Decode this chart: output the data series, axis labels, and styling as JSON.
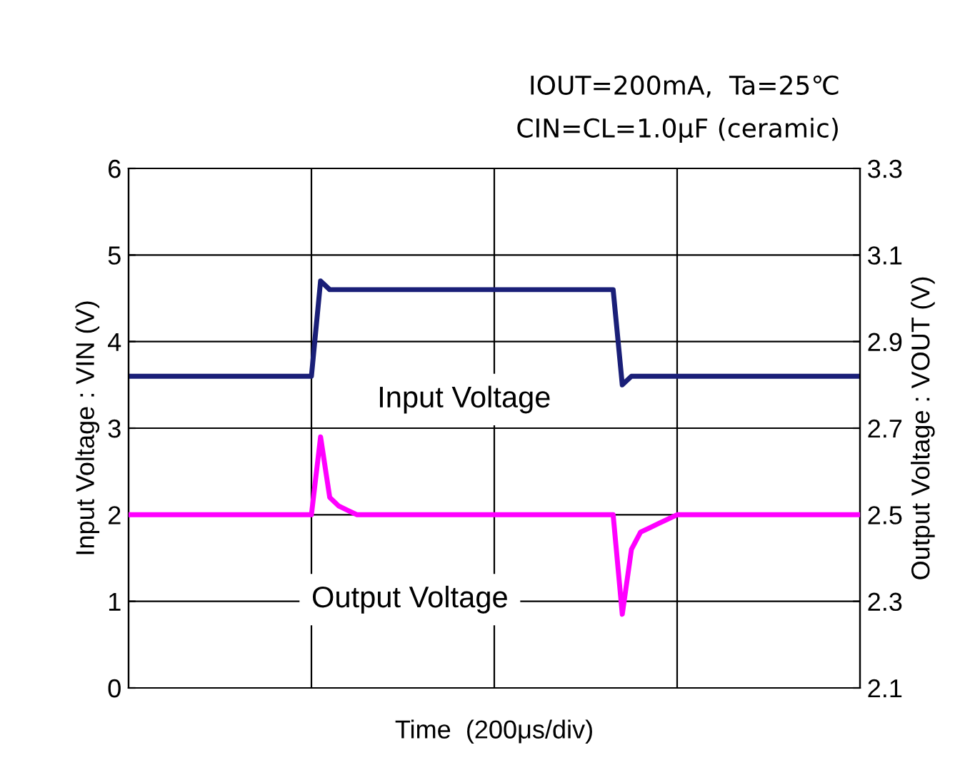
{
  "chart_data": {
    "type": "line",
    "annotations": [
      "IOUT=200mA,  Ta=25℃",
      "CIN=CL=1.0μF (ceramic)"
    ],
    "xlabel": "Time  (200μs/div)",
    "ylabel": "Input Voltage : VIN (V)",
    "y2label": "Output Voltage : VOUT (V)",
    "categories": [
      null,
      null,
      null,
      null,
      null,
      null,
      null,
      null,
      null,
      null,
      null,
      null,
      null,
      null,
      null,
      null,
      null,
      null,
      null,
      null,
      null,
      null,
      null,
      null,
      null,
      null,
      null,
      null,
      null,
      null,
      null,
      null,
      null,
      null,
      null,
      null,
      null,
      null,
      null,
      null,
      null,
      null,
      null,
      null,
      null,
      null,
      null,
      null,
      null,
      null,
      null,
      null,
      null,
      null,
      null,
      null,
      null,
      null,
      null,
      null,
      null,
      null,
      null,
      null,
      null,
      null,
      null,
      null,
      null,
      null,
      null,
      null,
      null,
      null,
      null,
      null,
      null,
      null,
      null,
      null,
      null
    ],
    "series": [
      {
        "name": "Input Voltage",
        "color": "#1a1f78",
        "values": [
          3.6,
          3.6,
          3.6,
          3.6,
          3.6,
          3.6,
          3.6,
          3.6,
          3.6,
          3.6,
          3.6,
          3.6,
          3.6,
          3.6,
          3.6,
          3.6,
          3.6,
          3.6,
          3.6,
          3.6,
          3.6,
          4.7,
          4.6,
          4.6,
          4.6,
          4.6,
          4.6,
          4.6,
          4.6,
          4.6,
          4.6,
          4.6,
          4.6,
          4.6,
          4.6,
          4.6,
          4.6,
          4.6,
          4.6,
          4.6,
          4.6,
          4.6,
          4.6,
          4.6,
          4.6,
          4.6,
          4.6,
          4.6,
          4.6,
          4.6,
          4.6,
          4.6,
          4.6,
          4.6,
          3.5,
          3.6,
          3.6,
          3.6,
          3.6,
          3.6,
          3.6,
          3.6,
          3.6,
          3.6,
          3.6,
          3.6,
          3.6,
          3.6,
          3.6,
          3.6,
          3.6,
          3.6,
          3.6,
          3.6,
          3.6,
          3.6,
          3.6,
          3.6,
          3.6,
          3.6,
          3.6
        ]
      },
      {
        "name": "Output Voltage",
        "color": "#ff00ff",
        "axis": "y2",
        "values": [
          2.5,
          2.5,
          2.5,
          2.5,
          2.5,
          2.5,
          2.5,
          2.5,
          2.5,
          2.5,
          2.5,
          2.5,
          2.5,
          2.5,
          2.5,
          2.5,
          2.5,
          2.5,
          2.5,
          2.5,
          2.5,
          2.68,
          2.54,
          2.52,
          2.51,
          2.5,
          2.5,
          2.5,
          2.5,
          2.5,
          2.5,
          2.5,
          2.5,
          2.5,
          2.5,
          2.5,
          2.5,
          2.5,
          2.5,
          2.5,
          2.5,
          2.5,
          2.5,
          2.5,
          2.5,
          2.5,
          2.5,
          2.5,
          2.5,
          2.5,
          2.5,
          2.5,
          2.5,
          2.5,
          2.27,
          2.42,
          2.46,
          2.47,
          2.48,
          2.49,
          2.5,
          2.5,
          2.5,
          2.5,
          2.5,
          2.5,
          2.5,
          2.5,
          2.5,
          2.5,
          2.5,
          2.5,
          2.5,
          2.5,
          2.5,
          2.5,
          2.5,
          2.5,
          2.5,
          2.5,
          2.5
        ]
      }
    ],
    "ylim": [
      0,
      6
    ],
    "yticks": [
      0,
      1,
      2,
      3,
      4,
      5,
      6
    ],
    "y2lim": [
      2.1,
      3.3
    ],
    "y2ticks": [
      2.1,
      2.3,
      2.5,
      2.7,
      2.9,
      3.1,
      3.3
    ],
    "grid": true
  }
}
